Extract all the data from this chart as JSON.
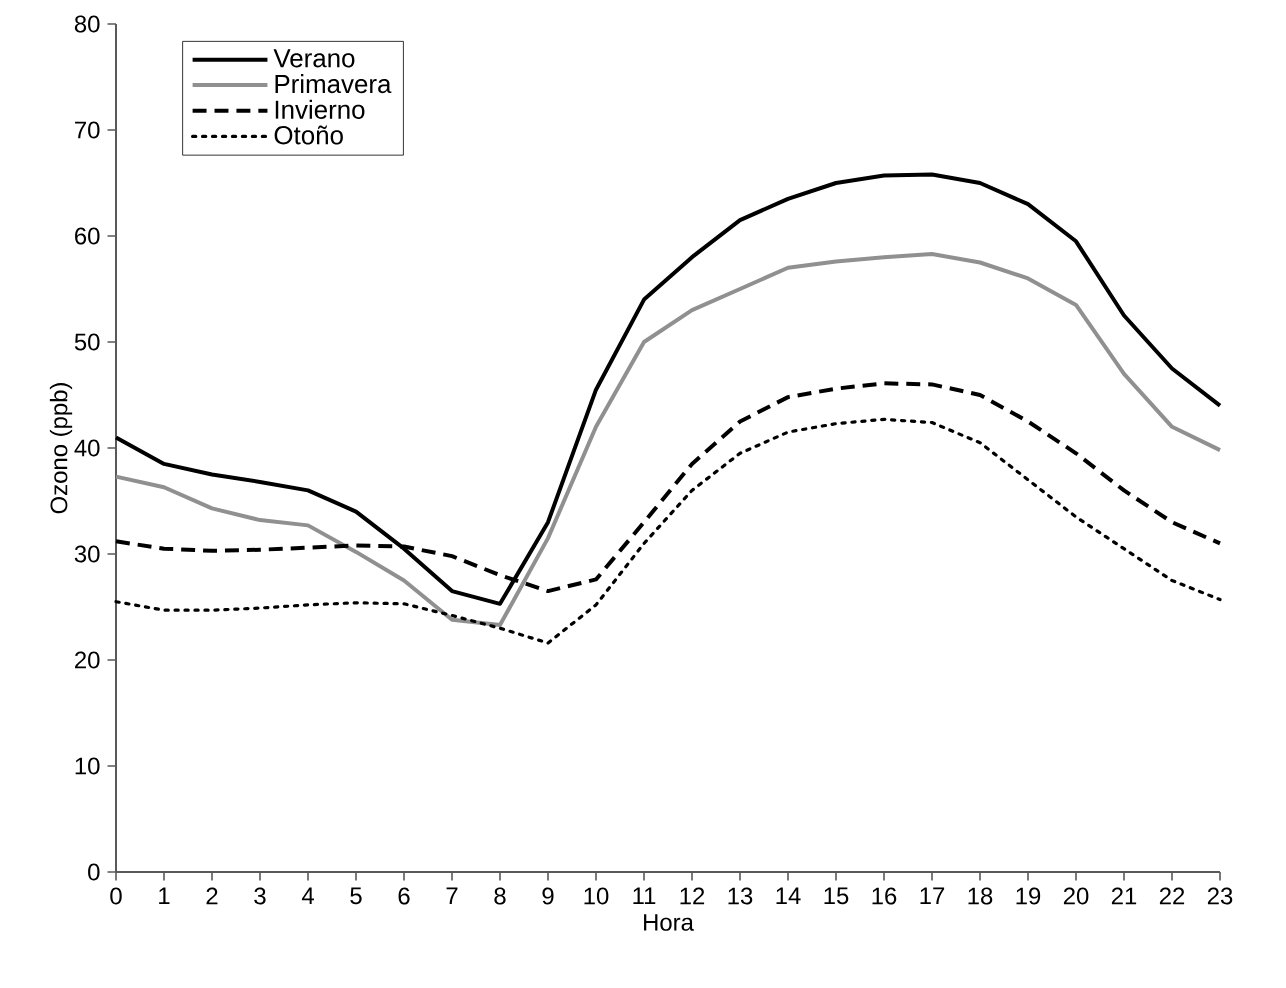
{
  "chart_data": {
    "type": "line",
    "xlabel": "Hora",
    "ylabel": "Ozono (ppb)",
    "x": [
      0,
      1,
      2,
      3,
      4,
      5,
      6,
      7,
      8,
      9,
      10,
      11,
      12,
      13,
      14,
      15,
      16,
      17,
      18,
      19,
      20,
      21,
      22,
      23
    ],
    "xlim": [
      0,
      23
    ],
    "xticks": [
      0,
      1,
      2,
      3,
      4,
      5,
      6,
      7,
      8,
      9,
      10,
      11,
      12,
      13,
      14,
      15,
      16,
      17,
      18,
      19,
      20,
      21,
      22,
      23
    ],
    "ylim": [
      0,
      80
    ],
    "yticks": [
      0,
      10,
      20,
      30,
      40,
      50,
      60,
      70,
      80
    ],
    "grid": false,
    "legend": "top left",
    "marker": "none",
    "series": [
      {
        "name": "Verano",
        "color": "#000000",
        "line_style": "solid",
        "values": [
          41,
          38.5,
          37.5,
          36.8,
          36,
          34,
          30.5,
          26.5,
          25.3,
          33,
          45.5,
          54,
          58,
          61.5,
          63.5,
          65,
          65.7,
          65.8,
          65,
          63,
          59.5,
          52.5,
          47.5,
          44
        ]
      },
      {
        "name": "Primavera",
        "color": "#909090",
        "line_style": "solid",
        "values": [
          37.3,
          36.3,
          34.3,
          33.2,
          32.7,
          30.2,
          27.5,
          23.8,
          23.3,
          31.5,
          42,
          50,
          53,
          55,
          57,
          57.6,
          58,
          58.3,
          57.5,
          56,
          53.5,
          47,
          42,
          39.8
        ]
      },
      {
        "name": "Invierno",
        "color": "#000000",
        "line_style": "dashed",
        "values": [
          31.2,
          30.5,
          30.3,
          30.4,
          30.6,
          30.8,
          30.7,
          29.8,
          28,
          26.5,
          27.6,
          33,
          38.5,
          42.5,
          44.8,
          45.6,
          46.1,
          46,
          45,
          42.5,
          39.5,
          36,
          33,
          31
        ]
      },
      {
        "name": "Otoño",
        "color": "#000000",
        "line_style": "dotted",
        "values": [
          25.5,
          24.7,
          24.7,
          24.9,
          25.2,
          25.4,
          25.3,
          24.2,
          23,
          21.6,
          25.2,
          31,
          36,
          39.5,
          41.5,
          42.3,
          42.7,
          42.4,
          40.5,
          37,
          33.5,
          30.5,
          27.5,
          25.7
        ]
      }
    ]
  }
}
